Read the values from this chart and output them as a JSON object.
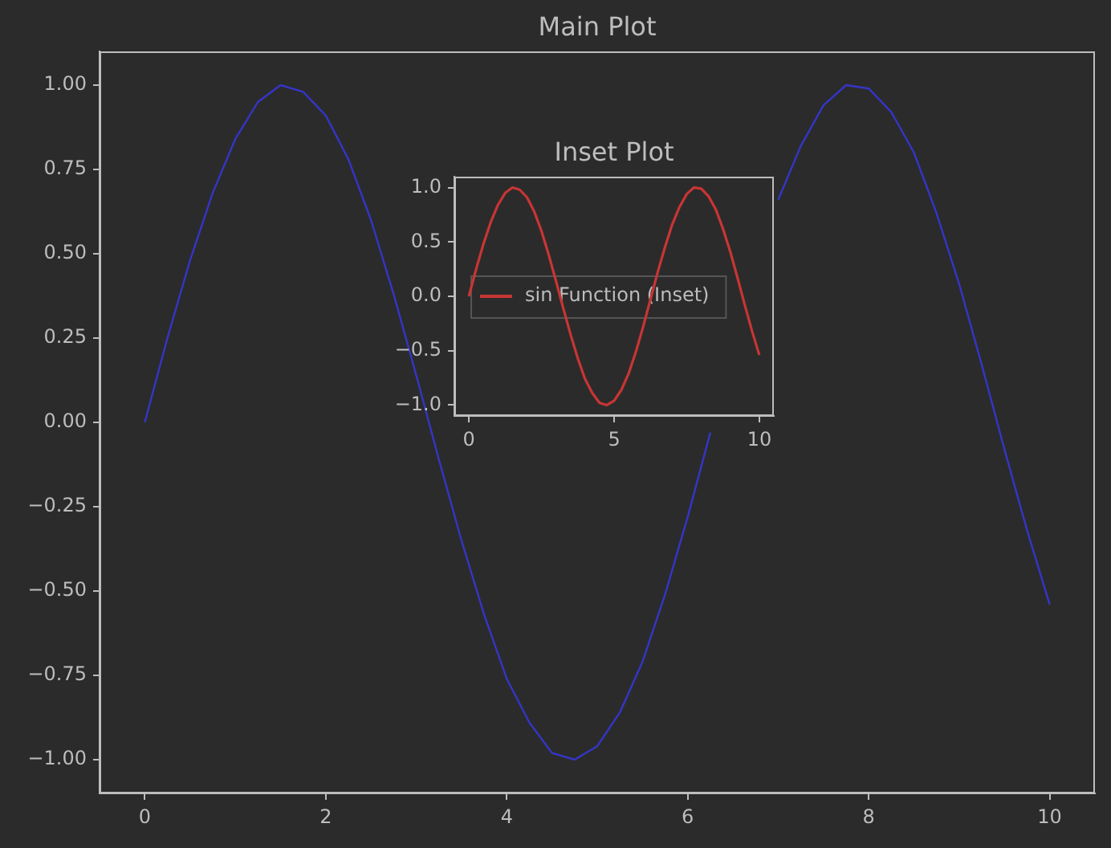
{
  "chart_data": [
    {
      "type": "line",
      "title": "Main Plot",
      "x": [
        0,
        0.25,
        0.5,
        0.75,
        1,
        1.25,
        1.5,
        1.75,
        2,
        2.25,
        2.5,
        2.75,
        3,
        3.25,
        3.5,
        3.75,
        4,
        4.25,
        4.5,
        4.75,
        5,
        5.25,
        5.5,
        5.75,
        6,
        6.25,
        6.5,
        6.75,
        7,
        7.25,
        7.5,
        7.75,
        8,
        8.25,
        8.5,
        8.75,
        9,
        9.25,
        9.5,
        9.75,
        10
      ],
      "series": [
        {
          "color": "#3535c8",
          "values": [
            0,
            0.25,
            0.48,
            0.68,
            0.84,
            0.95,
            1.0,
            0.98,
            0.91,
            0.78,
            0.6,
            0.38,
            0.14,
            -0.11,
            -0.35,
            -0.57,
            -0.76,
            -0.89,
            -0.98,
            -1.0,
            -0.96,
            -0.86,
            -0.71,
            -0.51,
            -0.28,
            -0.03,
            null,
            null,
            0.66,
            0.82,
            0.94,
            1.0,
            0.99,
            0.92,
            0.8,
            0.62,
            0.41,
            0.17,
            -0.08,
            -0.32,
            -0.54
          ]
        }
      ],
      "xlim": [
        -0.5,
        10.5
      ],
      "ylim": [
        -1.1,
        1.1
      ],
      "xticks": [
        0,
        2,
        4,
        6,
        8,
        10
      ],
      "yticks": [
        {
          "value": -1,
          "label": "−1.00"
        },
        {
          "value": -0.75,
          "label": "−0.75"
        },
        {
          "value": -0.5,
          "label": "−0.50"
        },
        {
          "value": -0.25,
          "label": "−0.25"
        },
        {
          "value": 0,
          "label": "0.00"
        },
        {
          "value": 0.25,
          "label": "0.25"
        },
        {
          "value": 0.5,
          "label": "0.50"
        },
        {
          "value": 0.75,
          "label": "0.75"
        },
        {
          "value": 1,
          "label": "1.00"
        }
      ],
      "legend": false
    },
    {
      "type": "line",
      "title": "Inset Plot",
      "x": [
        0,
        0.25,
        0.5,
        0.75,
        1,
        1.25,
        1.5,
        1.75,
        2,
        2.25,
        2.5,
        2.75,
        3,
        3.25,
        3.5,
        3.75,
        4,
        4.25,
        4.5,
        4.75,
        5,
        5.25,
        5.5,
        5.75,
        6,
        6.25,
        6.5,
        6.75,
        7,
        7.25,
        7.5,
        7.75,
        8,
        8.25,
        8.5,
        8.75,
        9,
        9.25,
        9.5,
        9.75,
        10
      ],
      "series": [
        {
          "name": "sin Function (Inset)",
          "color": "#c83535",
          "values": [
            0,
            0.25,
            0.48,
            0.68,
            0.84,
            0.95,
            1.0,
            0.98,
            0.91,
            0.78,
            0.6,
            0.38,
            0.14,
            -0.11,
            -0.35,
            -0.57,
            -0.76,
            -0.89,
            -0.98,
            -1.0,
            -0.96,
            -0.86,
            -0.71,
            -0.51,
            -0.28,
            -0.03,
            0.22,
            0.45,
            0.66,
            0.82,
            0.94,
            1.0,
            0.99,
            0.92,
            0.8,
            0.62,
            0.41,
            0.17,
            -0.08,
            -0.32,
            -0.54
          ]
        }
      ],
      "xlim": [
        -0.5,
        10.5
      ],
      "ylim": [
        -1.1,
        1.1
      ],
      "xticks": [
        0,
        5,
        10
      ],
      "yticks": [
        {
          "value": -1,
          "label": "−1.0"
        },
        {
          "value": -0.5,
          "label": "−0.5"
        },
        {
          "value": 0,
          "label": "0.0"
        },
        {
          "value": 0.5,
          "label": "0.5"
        },
        {
          "value": 1,
          "label": "1.0"
        }
      ],
      "legend": "center left"
    }
  ]
}
